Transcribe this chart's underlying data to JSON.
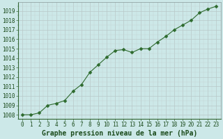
{
  "x": [
    0,
    1,
    2,
    3,
    4,
    5,
    6,
    7,
    8,
    9,
    10,
    11,
    12,
    13,
    14,
    15,
    16,
    17,
    18,
    19,
    20,
    21,
    22,
    23
  ],
  "y": [
    1008.0,
    1008.0,
    1008.2,
    1009.0,
    1009.2,
    1009.5,
    1010.5,
    1011.2,
    1012.5,
    1013.3,
    1014.1,
    1014.8,
    1014.9,
    1014.6,
    1015.0,
    1015.0,
    1015.7,
    1016.3,
    1017.0,
    1017.5,
    1018.0,
    1018.8,
    1019.2,
    1019.5
  ],
  "line_color": "#2d6a2d",
  "marker": "D",
  "marker_size": 2.5,
  "bg_color": "#cce8e8",
  "plot_bg_color": "#cce8e8",
  "grid_major_color": "#b0c8c8",
  "grid_minor_color": "#b8d4d4",
  "spine_color": "#336633",
  "ylabel_ticks": [
    1008,
    1009,
    1010,
    1011,
    1012,
    1013,
    1014,
    1015,
    1016,
    1017,
    1018,
    1019
  ],
  "ylim": [
    1007.6,
    1019.9
  ],
  "xlim": [
    -0.5,
    23.5
  ],
  "xlabel": "Graphe pression niveau de la mer (hPa)",
  "xlabel_fontsize": 7,
  "tick_fontsize": 5.5,
  "label_color": "#1a4a1a"
}
